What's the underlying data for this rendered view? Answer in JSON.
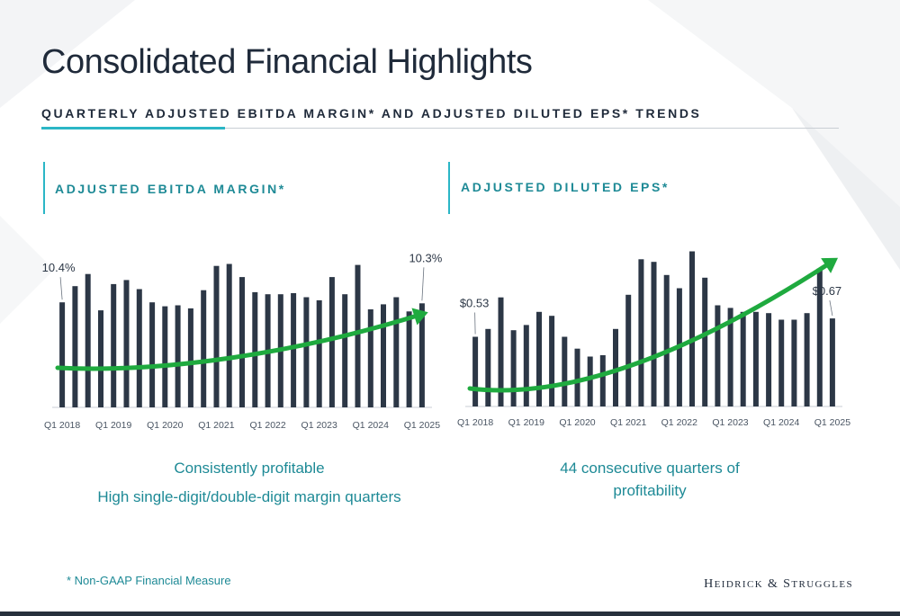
{
  "slide": {
    "title": "Consolidated Financial Highlights",
    "subtitle": "QUARTERLY ADJUSTED EBITDA MARGIN* AND ADJUSTED DILUTED EPS* TRENDS",
    "footnote": "* Non-GAAP Financial Measure",
    "logo_text": "Heidrick & Struggles",
    "colors": {
      "bar": "#2c3746",
      "trend": "#1faa3f",
      "accent": "#2bb6c6",
      "teal_text": "#1e8a96"
    }
  },
  "panels": [
    {
      "title": "ADJUSTED EBITDA MARGIN*",
      "captions": [
        "Consistently profitable",
        "High single-digit/double-digit margin quarters"
      ]
    },
    {
      "title": "ADJUSTED DILUTED EPS*",
      "captions": [
        "44 consecutive quarters of",
        "profitability"
      ]
    }
  ],
  "chart_data": [
    {
      "type": "bar",
      "title": "ADJUSTED EBITDA MARGIN*",
      "x_tick_labels": [
        "Q1 2018",
        "Q1 2019",
        "Q1 2020",
        "Q1 2021",
        "Q1 2022",
        "Q1 2023",
        "Q1 2024",
        "Q1 2025"
      ],
      "categories": [
        "Q1 2018",
        "Q2 2018",
        "Q3 2018",
        "Q4 2018",
        "Q1 2019",
        "Q2 2019",
        "Q3 2019",
        "Q4 2019",
        "Q1 2020",
        "Q2 2020",
        "Q3 2020",
        "Q4 2020",
        "Q1 2021",
        "Q2 2021",
        "Q3 2021",
        "Q4 2021",
        "Q1 2022",
        "Q2 2022",
        "Q3 2022",
        "Q4 2022",
        "Q1 2023",
        "Q2 2023",
        "Q3 2023",
        "Q4 2023",
        "Q1 2024",
        "Q2 2024",
        "Q3 2024",
        "Q4 2024",
        "Q1 2025"
      ],
      "values": [
        10.4,
        12.0,
        13.2,
        9.6,
        12.2,
        12.6,
        11.7,
        10.4,
        10.0,
        10.1,
        9.8,
        11.6,
        14.0,
        14.2,
        12.9,
        11.4,
        11.2,
        11.2,
        11.3,
        10.9,
        10.6,
        12.9,
        11.2,
        14.1,
        9.7,
        10.2,
        10.9,
        9.5,
        10.3
      ],
      "data_labels": [
        {
          "index": 0,
          "text": "10.4%"
        },
        {
          "index": 28,
          "text": "10.3%"
        }
      ],
      "trend_line": true,
      "ylim": [
        0,
        17
      ]
    },
    {
      "type": "bar",
      "title": "ADJUSTED DILUTED EPS*",
      "x_tick_labels": [
        "Q1 2018",
        "Q1 2019",
        "Q1 2020",
        "Q1 2021",
        "Q1 2022",
        "Q1 2023",
        "Q1 2024",
        "Q1 2025"
      ],
      "categories": [
        "Q1 2018",
        "Q2 2018",
        "Q3 2018",
        "Q4 2018",
        "Q1 2019",
        "Q2 2019",
        "Q3 2019",
        "Q4 2019",
        "Q1 2020",
        "Q2 2020",
        "Q3 2020",
        "Q4 2020",
        "Q1 2021",
        "Q2 2021",
        "Q3 2021",
        "Q4 2021",
        "Q1 2022",
        "Q2 2022",
        "Q3 2022",
        "Q4 2022",
        "Q1 2023",
        "Q2 2023",
        "Q3 2023",
        "Q4 2023",
        "Q1 2024",
        "Q2 2024",
        "Q3 2024",
        "Q4 2024",
        "Q1 2025"
      ],
      "values": [
        0.53,
        0.59,
        0.83,
        0.58,
        0.62,
        0.72,
        0.69,
        0.53,
        0.44,
        0.38,
        0.39,
        0.59,
        0.85,
        1.12,
        1.1,
        1.0,
        0.9,
        1.18,
        0.98,
        0.77,
        0.75,
        0.72,
        0.72,
        0.71,
        0.66,
        0.66,
        0.71,
        1.05,
        0.67
      ],
      "data_labels": [
        {
          "index": 0,
          "text": "$0.53"
        },
        {
          "index": 28,
          "text": "$0.67"
        }
      ],
      "trend_line": true,
      "ylim": [
        0,
        1.3
      ]
    }
  ]
}
